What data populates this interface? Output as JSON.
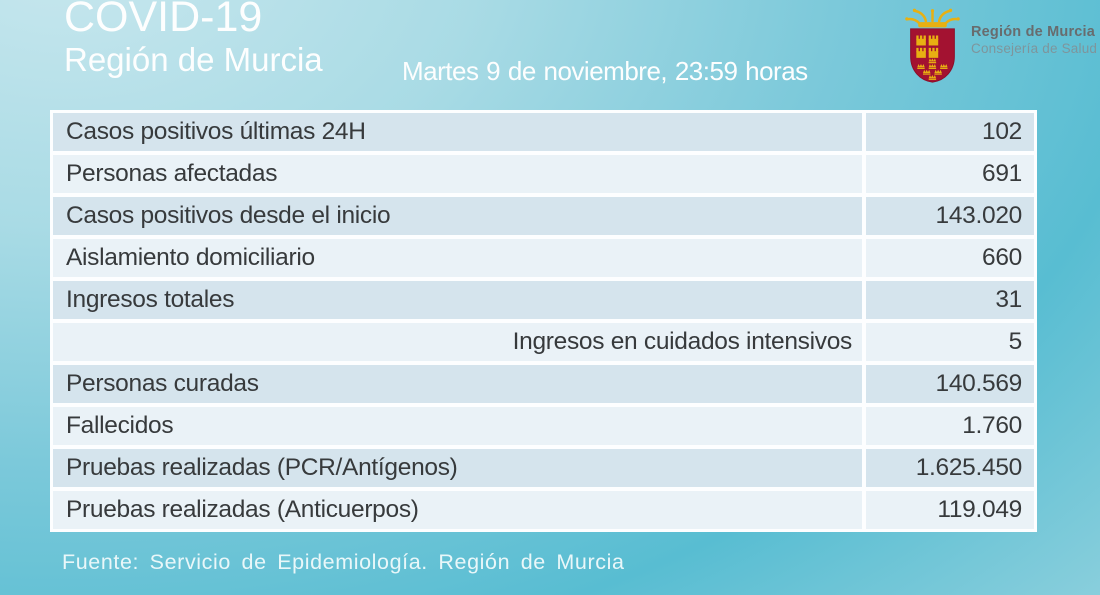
{
  "header": {
    "title_line1": "COVID-19",
    "title_line2": "Región de Murcia",
    "datetime": "Martes 9 de noviembre, 23:59 horas",
    "logo": {
      "org": "Región de Murcia",
      "dept": "Consejería de Salud"
    }
  },
  "chart_data": {
    "type": "table",
    "title": "COVID-19 Región de Murcia",
    "subtitle": "Martes 9 de noviembre, 23:59 horas",
    "rows": [
      {
        "label": "Casos positivos últimas 24H",
        "value": "102",
        "value_num": 102,
        "label_align": "left"
      },
      {
        "label": "Personas afectadas",
        "value": "691",
        "value_num": 691,
        "label_align": "left"
      },
      {
        "label": "Casos positivos desde el inicio",
        "value": "143.020",
        "value_num": 143020,
        "label_align": "left"
      },
      {
        "label": "Aislamiento domiciliario",
        "value": "660",
        "value_num": 660,
        "label_align": "left"
      },
      {
        "label": "Ingresos totales",
        "value": "31",
        "value_num": 31,
        "label_align": "left"
      },
      {
        "label": "Ingresos en cuidados intensivos",
        "value": "5",
        "value_num": 5,
        "label_align": "right"
      },
      {
        "label": "Personas curadas",
        "value": "140.569",
        "value_num": 140569,
        "label_align": "left"
      },
      {
        "label": "Fallecidos",
        "value": "1.760",
        "value_num": 1760,
        "label_align": "left"
      },
      {
        "label": "Pruebas realizadas (PCR/Antígenos)",
        "value": "1.625.450",
        "value_num": 1625450,
        "label_align": "left"
      },
      {
        "label": "Pruebas realizadas (Anticuerpos)",
        "value": "119.049",
        "value_num": 119049,
        "label_align": "left"
      }
    ]
  },
  "footer": {
    "source": "Fuente: Servicio de Epidemiología. Región de Murcia"
  },
  "colors": {
    "background_light": "#c8e7ee",
    "background_deep": "#58bdd2",
    "row_dark": "#d5e4ed",
    "row_light": "#eaf2f7",
    "table_border": "#fdfeff",
    "text_dark": "#373a3c",
    "text_white": "#fdfefe",
    "shield_red": "#a31231",
    "crown_gold": "#e8b012"
  }
}
